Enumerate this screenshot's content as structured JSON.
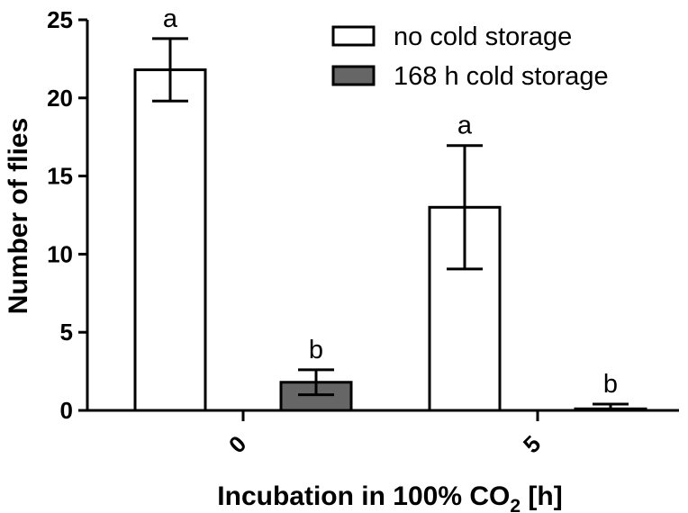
{
  "chart_data": {
    "type": "bar",
    "title": "",
    "categories": [
      "0",
      "5"
    ],
    "xlabel": {
      "prefix": "Incubation in 100% CO",
      "subscript": "2",
      "suffix": " [h]"
    },
    "ylabel": "Number of flies",
    "ylim": [
      0,
      25
    ],
    "yticks": [
      "0",
      "5",
      "10",
      "15",
      "20",
      "25"
    ],
    "legend_position": "top-right",
    "series": [
      {
        "name": "no cold storage",
        "color": "#ffffff",
        "values": [
          21.8,
          13.0
        ],
        "errors": [
          2.0,
          3.95
        ],
        "labels": [
          "a",
          "a"
        ]
      },
      {
        "name": "168 h cold storage",
        "color": "#666666",
        "values": [
          1.8,
          0.1
        ],
        "errors": [
          0.8,
          0.3
        ],
        "labels": [
          "b",
          "b"
        ]
      }
    ]
  }
}
